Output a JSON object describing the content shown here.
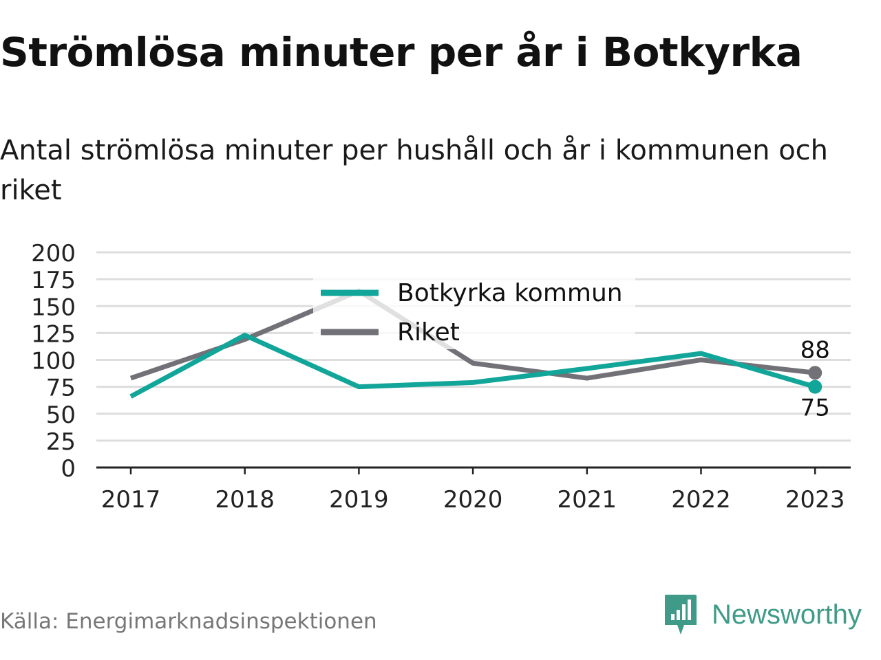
{
  "title": "Strömlösa minuter per år i Botkyrka",
  "subtitle": "Antal strömlösa minuter per hushåll och år i kommunen och riket",
  "source": "Källa: Energimarknadsinspektionen",
  "brand": {
    "name": "Newsworthy",
    "icon": "newsworthy-logo-icon",
    "color": "#3f9b88"
  },
  "chart_data": {
    "type": "line",
    "categories": [
      "2017",
      "2018",
      "2019",
      "2020",
      "2021",
      "2022",
      "2023"
    ],
    "y_ticks": [
      "0",
      "25",
      "50",
      "75",
      "100",
      "125",
      "150",
      "175",
      "200"
    ],
    "ylim": [
      0,
      200
    ],
    "grid": true,
    "legend_position": "top-center",
    "series": [
      {
        "name": "Botkyrka kommun",
        "color": "#12a599",
        "values": [
          66,
          123,
          75,
          79,
          92,
          106,
          75
        ],
        "end_label": "75"
      },
      {
        "name": "Riket",
        "color": "#727178",
        "values": [
          83,
          119,
          164,
          97,
          83,
          100,
          88
        ],
        "end_label": "88"
      }
    ]
  }
}
